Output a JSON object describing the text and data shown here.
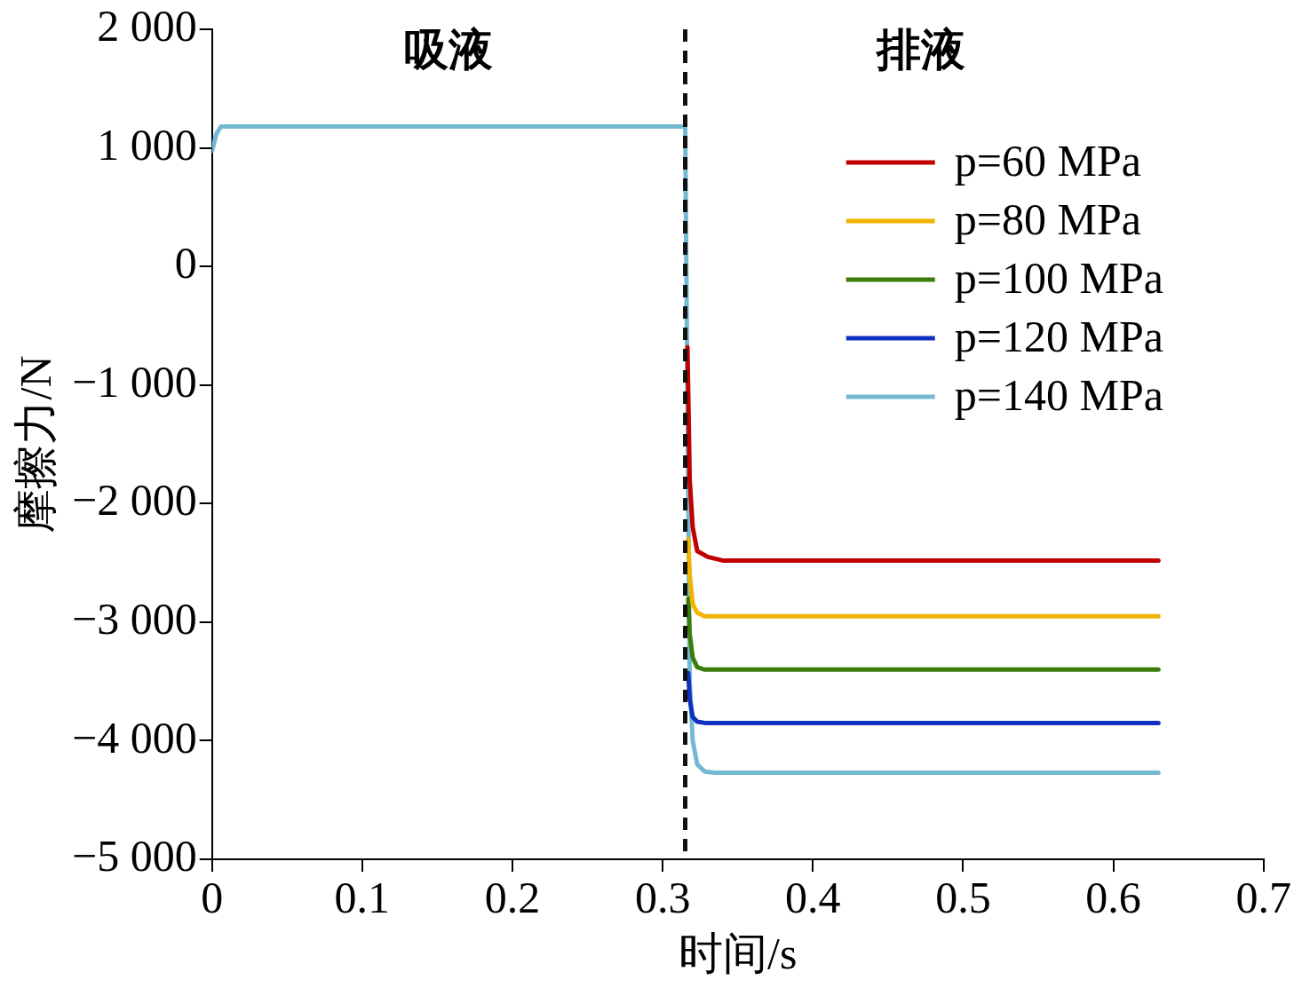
{
  "chart_data": {
    "type": "line",
    "xlabel": "时间/s",
    "ylabel": "摩擦力/N",
    "xlim": [
      0,
      0.7
    ],
    "xticks": [
      0,
      0.1,
      0.2,
      0.3,
      0.4,
      0.5,
      0.6,
      0.7
    ],
    "ylim": [
      -5000,
      2000
    ],
    "yticks": [
      {
        "value": -5000,
        "label": "−5 000"
      },
      {
        "value": -4000,
        "label": "−4 000"
      },
      {
        "value": -3000,
        "label": "−3 000"
      },
      {
        "value": -2000,
        "label": "−2 000"
      },
      {
        "value": -1000,
        "label": "−1 000"
      },
      0,
      {
        "value": 1000,
        "label": "1 000"
      },
      {
        "value": 2000,
        "label": "2 000"
      }
    ],
    "grid": false,
    "legend": "top right",
    "marker": "none",
    "line_style": "solid",
    "ref_lines": [
      {
        "axis": "x",
        "value": 0.315,
        "color": "#111111",
        "line_style": "dashed"
      }
    ],
    "annotations": [
      "吸液",
      "排液"
    ],
    "series": [
      {
        "name": "p=60 MPa",
        "color": "#c00000",
        "x": [
          0.3165,
          0.318,
          0.32,
          0.323,
          0.33,
          0.34,
          0.63
        ],
        "values": [
          -680,
          -1800,
          -2200,
          -2400,
          -2450,
          -2480,
          -2480
        ]
      },
      {
        "name": "p=80 MPa",
        "color": "#f0b400",
        "x": [
          0.317,
          0.318,
          0.32,
          0.323,
          0.328,
          0.63
        ],
        "values": [
          -2300,
          -2600,
          -2850,
          -2920,
          -2950,
          -2950
        ]
      },
      {
        "name": "p=100 MPa",
        "color": "#3a7d0a",
        "x": [
          0.317,
          0.318,
          0.32,
          0.323,
          0.328,
          0.63
        ],
        "values": [
          -2800,
          -3100,
          -3300,
          -3380,
          -3400,
          -3400
        ]
      },
      {
        "name": "p=120 MPa",
        "color": "#1030c0",
        "x": [
          0.317,
          0.318,
          0.32,
          0.323,
          0.328,
          0.63
        ],
        "values": [
          -3430,
          -3650,
          -3800,
          -3840,
          -3850,
          -3850
        ]
      },
      {
        "name": "p=140 MPa",
        "color": "#74b9d4",
        "x": [
          0,
          0.003,
          0.006,
          0.315,
          0.3165,
          0.318,
          0.32,
          0.323,
          0.328,
          0.335,
          0.63
        ],
        "values": [
          975,
          1120,
          1180,
          1180,
          null,
          -3500,
          -4000,
          -4200,
          -4260,
          -4270,
          -4270
        ]
      }
    ]
  }
}
